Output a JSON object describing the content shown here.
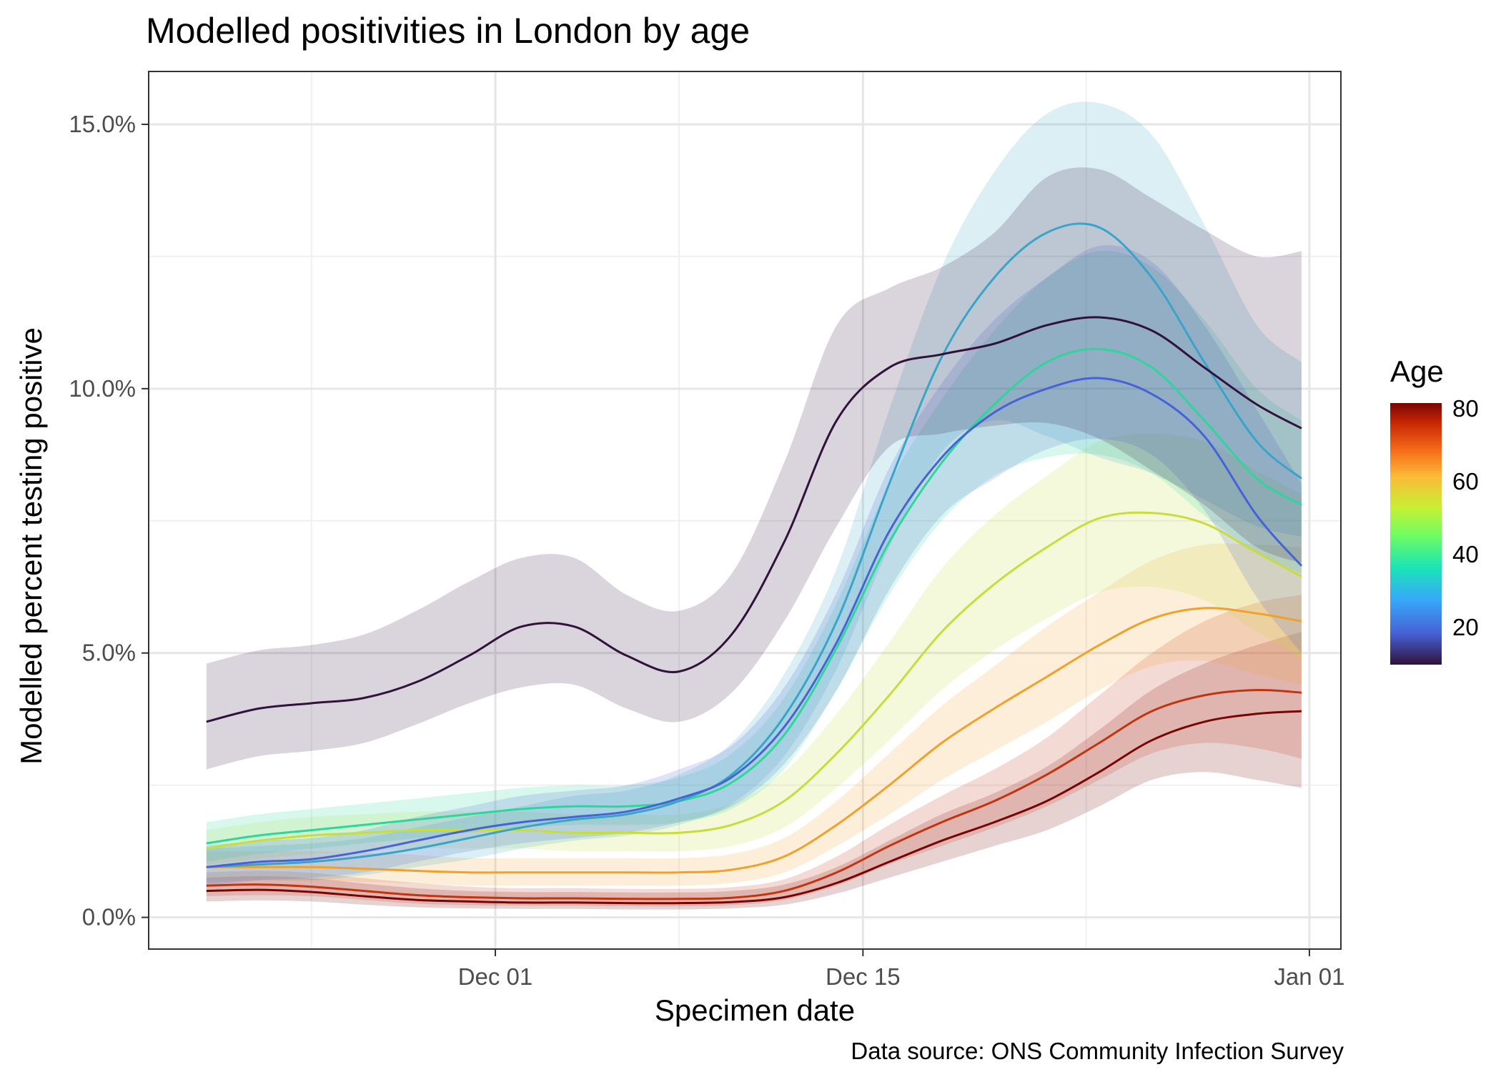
{
  "title": "Modelled positivities in London by age",
  "caption": "Data source: ONS Community Infection Survey",
  "legend": {
    "title": "Age",
    "ticks": [
      "80",
      "60",
      "40",
      "20"
    ],
    "range": [
      10,
      80
    ]
  },
  "chart_data": {
    "type": "line",
    "title": "Modelled positivities in London by age",
    "xlabel": "Specimen date",
    "ylabel": "Modelled percent testing positive",
    "x_tick_labels": [
      "Dec 01",
      "Dec 15",
      "Jan 01"
    ],
    "x_tick_values": [
      0,
      14,
      31
    ],
    "y_tick_labels": [
      "0.0%",
      "5.0%",
      "10.0%",
      "15.0%"
    ],
    "y_tick_values": [
      0,
      5,
      10,
      15
    ],
    "xlim": [
      -13.2,
      32.2
    ],
    "ylim": [
      -0.6,
      16.0
    ],
    "x_unit": "days since Dec 01",
    "x": [
      -11,
      -9,
      -7,
      -5,
      -3,
      -1,
      1,
      3,
      5,
      7,
      9,
      11,
      13,
      15,
      17,
      19,
      21,
      23,
      25,
      27,
      29,
      30.7
    ],
    "series": [
      {
        "name": "Age 10",
        "color": "#30123b",
        "values": [
          3.7,
          3.95,
          4.05,
          4.15,
          4.45,
          4.95,
          5.5,
          5.5,
          4.95,
          4.65,
          5.35,
          7.1,
          9.4,
          10.4,
          10.65,
          10.85,
          11.2,
          11.35,
          11.1,
          10.4,
          9.7,
          9.25
        ],
        "lower": [
          2.8,
          3.05,
          3.15,
          3.3,
          3.65,
          4.05,
          4.35,
          4.4,
          3.95,
          3.7,
          4.25,
          5.6,
          7.4,
          8.9,
          9.15,
          9.3,
          9.35,
          9.05,
          8.45,
          7.8,
          7.0,
          6.7
        ],
        "upper": [
          4.8,
          5.05,
          5.15,
          5.35,
          5.8,
          6.35,
          6.8,
          6.8,
          6.1,
          5.8,
          6.5,
          8.6,
          11.2,
          11.9,
          12.3,
          12.95,
          14.0,
          14.15,
          13.6,
          13.0,
          12.5,
          12.6
        ]
      },
      {
        "name": "Age 20",
        "color": "#4662d7",
        "values": [
          0.95,
          1.05,
          1.1,
          1.25,
          1.45,
          1.65,
          1.8,
          1.9,
          2.0,
          2.25,
          2.65,
          3.6,
          5.2,
          7.3,
          8.7,
          9.55,
          10.0,
          10.2,
          9.9,
          9.1,
          7.6,
          6.65
        ],
        "lower": [
          0.6,
          0.7,
          0.75,
          0.85,
          1.05,
          1.25,
          1.4,
          1.5,
          1.6,
          1.8,
          2.1,
          2.9,
          4.3,
          6.2,
          7.6,
          8.3,
          8.85,
          9.05,
          8.75,
          7.7,
          6.05,
          5.0
        ],
        "upper": [
          1.35,
          1.45,
          1.5,
          1.65,
          1.9,
          2.1,
          2.3,
          2.4,
          2.5,
          2.8,
          3.25,
          4.35,
          6.15,
          8.5,
          10.1,
          11.3,
          12.1,
          12.7,
          12.4,
          11.2,
          9.6,
          8.2
        ]
      },
      {
        "name": "Age 25",
        "color": "#3aa4c8",
        "values": [
          0.95,
          1.0,
          1.05,
          1.15,
          1.3,
          1.5,
          1.7,
          1.85,
          1.95,
          2.2,
          2.7,
          3.8,
          5.6,
          8.2,
          10.6,
          12.1,
          12.95,
          13.05,
          12.1,
          10.5,
          9.0,
          8.3
        ],
        "lower": [
          0.65,
          0.7,
          0.7,
          0.8,
          0.95,
          1.1,
          1.3,
          1.45,
          1.55,
          1.75,
          2.15,
          3.05,
          4.7,
          7.0,
          8.8,
          9.4,
          9.1,
          8.7,
          8.4,
          7.9,
          7.4,
          7.2
        ],
        "upper": [
          1.3,
          1.35,
          1.4,
          1.5,
          1.7,
          1.9,
          2.1,
          2.3,
          2.4,
          2.7,
          3.3,
          4.6,
          6.6,
          9.6,
          12.3,
          14.1,
          15.2,
          15.4,
          14.8,
          13.1,
          11.2,
          10.5
        ]
      },
      {
        "name": "Age 35",
        "color": "#2fd69a",
        "values": [
          1.4,
          1.55,
          1.65,
          1.75,
          1.85,
          1.95,
          2.05,
          2.1,
          2.1,
          2.2,
          2.55,
          3.45,
          5.1,
          7.1,
          8.6,
          9.7,
          10.5,
          10.75,
          10.4,
          9.4,
          8.3,
          7.8
        ],
        "lower": [
          1.05,
          1.2,
          1.3,
          1.4,
          1.5,
          1.6,
          1.7,
          1.75,
          1.75,
          1.8,
          2.05,
          2.8,
          4.3,
          6.1,
          7.5,
          8.35,
          8.7,
          8.75,
          8.4,
          7.6,
          6.9,
          6.5
        ],
        "upper": [
          1.8,
          1.95,
          2.05,
          2.15,
          2.25,
          2.35,
          2.45,
          2.5,
          2.5,
          2.65,
          3.1,
          4.15,
          5.95,
          8.2,
          9.8,
          11.1,
          12.1,
          12.6,
          12.3,
          11.3,
          10.0,
          9.4
        ]
      },
      {
        "name": "Age 50",
        "color": "#c8dd3c",
        "values": [
          1.3,
          1.45,
          1.55,
          1.6,
          1.65,
          1.65,
          1.65,
          1.6,
          1.6,
          1.6,
          1.75,
          2.2,
          3.1,
          4.2,
          5.4,
          6.3,
          7.0,
          7.55,
          7.65,
          7.45,
          6.9,
          6.45
        ],
        "lower": [
          1.0,
          1.1,
          1.2,
          1.25,
          1.3,
          1.3,
          1.3,
          1.25,
          1.25,
          1.25,
          1.35,
          1.7,
          2.45,
          3.35,
          4.3,
          5.05,
          5.65,
          6.15,
          6.25,
          6.0,
          5.4,
          4.9
        ],
        "upper": [
          1.65,
          1.8,
          1.9,
          1.95,
          2.0,
          2.0,
          2.0,
          1.95,
          1.95,
          1.95,
          2.15,
          2.75,
          3.85,
          5.2,
          6.6,
          7.6,
          8.35,
          9.0,
          9.15,
          9.0,
          8.45,
          8.0
        ]
      },
      {
        "name": "Age 60",
        "color": "#f0a12a",
        "values": [
          0.95,
          0.95,
          0.95,
          0.92,
          0.88,
          0.85,
          0.85,
          0.85,
          0.85,
          0.85,
          0.9,
          1.15,
          1.75,
          2.5,
          3.3,
          3.95,
          4.55,
          5.15,
          5.65,
          5.85,
          5.75,
          5.6
        ],
        "lower": [
          0.7,
          0.7,
          0.7,
          0.67,
          0.64,
          0.6,
          0.6,
          0.6,
          0.6,
          0.6,
          0.65,
          0.85,
          1.35,
          1.95,
          2.6,
          3.15,
          3.7,
          4.3,
          4.75,
          4.85,
          4.6,
          4.4
        ],
        "upper": [
          1.25,
          1.25,
          1.25,
          1.22,
          1.18,
          1.12,
          1.12,
          1.12,
          1.12,
          1.12,
          1.2,
          1.5,
          2.2,
          3.1,
          4.0,
          4.75,
          5.5,
          6.15,
          6.75,
          7.05,
          7.05,
          7.0
        ]
      },
      {
        "name": "Age 70",
        "color": "#c2340f",
        "values": [
          0.6,
          0.62,
          0.58,
          0.5,
          0.42,
          0.38,
          0.36,
          0.36,
          0.35,
          0.35,
          0.37,
          0.5,
          0.85,
          1.35,
          1.8,
          2.2,
          2.7,
          3.3,
          3.9,
          4.2,
          4.3,
          4.25
        ],
        "lower": [
          0.4,
          0.42,
          0.4,
          0.33,
          0.26,
          0.23,
          0.22,
          0.22,
          0.21,
          0.21,
          0.23,
          0.33,
          0.6,
          1.0,
          1.35,
          1.7,
          2.1,
          2.6,
          3.1,
          3.3,
          3.2,
          3.0
        ],
        "upper": [
          0.85,
          0.88,
          0.84,
          0.74,
          0.65,
          0.58,
          0.55,
          0.55,
          0.54,
          0.54,
          0.57,
          0.72,
          1.15,
          1.75,
          2.3,
          2.8,
          3.4,
          4.2,
          5.0,
          5.6,
          5.95,
          6.1
        ]
      },
      {
        "name": "Age 80",
        "color": "#7a0403",
        "values": [
          0.5,
          0.52,
          0.48,
          0.4,
          0.33,
          0.3,
          0.28,
          0.28,
          0.27,
          0.27,
          0.29,
          0.38,
          0.65,
          1.05,
          1.45,
          1.8,
          2.2,
          2.75,
          3.35,
          3.7,
          3.85,
          3.9
        ],
        "lower": [
          0.3,
          0.32,
          0.3,
          0.24,
          0.19,
          0.17,
          0.16,
          0.16,
          0.15,
          0.15,
          0.17,
          0.24,
          0.45,
          0.75,
          1.05,
          1.35,
          1.65,
          2.1,
          2.6,
          2.75,
          2.6,
          2.45
        ],
        "upper": [
          0.75,
          0.78,
          0.74,
          0.64,
          0.55,
          0.5,
          0.48,
          0.48,
          0.47,
          0.47,
          0.5,
          0.62,
          0.95,
          1.45,
          1.95,
          2.35,
          2.85,
          3.55,
          4.3,
          4.8,
          5.15,
          5.4
        ]
      }
    ]
  }
}
